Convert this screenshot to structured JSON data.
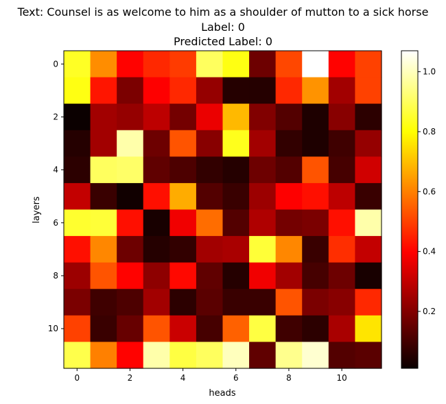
{
  "chart_data": {
    "type": "heatmap",
    "title_lines": [
      "Text: Counsel is as welcome to him as a shoulder of mutton to a sick horse",
      "Label: 0",
      "Predicted Label: 0"
    ],
    "xlabel": "heads",
    "ylabel": "layers",
    "x_ticks": [
      0,
      2,
      4,
      6,
      8,
      10
    ],
    "y_ticks": [
      0,
      2,
      4,
      6,
      8,
      10
    ],
    "colorbar_ticks": [
      0.2,
      0.4,
      0.6,
      0.8,
      1.0
    ],
    "colormap": "hot",
    "vmin": 0.01,
    "vmax": 1.07,
    "rows": 12,
    "cols": 12,
    "values": [
      [
        0.84,
        0.62,
        0.4,
        0.46,
        0.49,
        0.9,
        0.82,
        0.16,
        0.51,
        1.07,
        0.4,
        0.5
      ],
      [
        0.82,
        0.43,
        0.18,
        0.38,
        0.46,
        0.22,
        0.05,
        0.05,
        0.46,
        0.63,
        0.24,
        0.5
      ],
      [
        0.01,
        0.24,
        0.22,
        0.28,
        0.17,
        0.35,
        0.69,
        0.19,
        0.12,
        0.04,
        0.2,
        0.06
      ],
      [
        0.05,
        0.24,
        0.98,
        0.16,
        0.53,
        0.2,
        0.83,
        0.24,
        0.07,
        0.04,
        0.09,
        0.22
      ],
      [
        0.06,
        0.9,
        0.91,
        0.14,
        0.11,
        0.07,
        0.05,
        0.16,
        0.12,
        0.53,
        0.1,
        0.31
      ],
      [
        0.29,
        0.08,
        0.02,
        0.42,
        0.67,
        0.12,
        0.08,
        0.23,
        0.38,
        0.42,
        0.28,
        0.08
      ],
      [
        0.85,
        0.86,
        0.42,
        0.03,
        0.36,
        0.57,
        0.12,
        0.26,
        0.17,
        0.18,
        0.42,
        0.98
      ],
      [
        0.42,
        0.61,
        0.16,
        0.05,
        0.07,
        0.24,
        0.25,
        0.86,
        0.61,
        0.08,
        0.47,
        0.29
      ],
      [
        0.23,
        0.53,
        0.4,
        0.21,
        0.41,
        0.14,
        0.05,
        0.36,
        0.24,
        0.1,
        0.16,
        0.03
      ],
      [
        0.18,
        0.09,
        0.11,
        0.24,
        0.06,
        0.13,
        0.08,
        0.08,
        0.53,
        0.18,
        0.2,
        0.46
      ],
      [
        0.5,
        0.08,
        0.15,
        0.53,
        0.3,
        0.1,
        0.55,
        0.87,
        0.09,
        0.06,
        0.25,
        0.76
      ],
      [
        0.88,
        0.6,
        0.4,
        0.98,
        0.87,
        0.9,
        1.0,
        0.14,
        0.95,
        1.02,
        0.12,
        0.13
      ]
    ]
  }
}
